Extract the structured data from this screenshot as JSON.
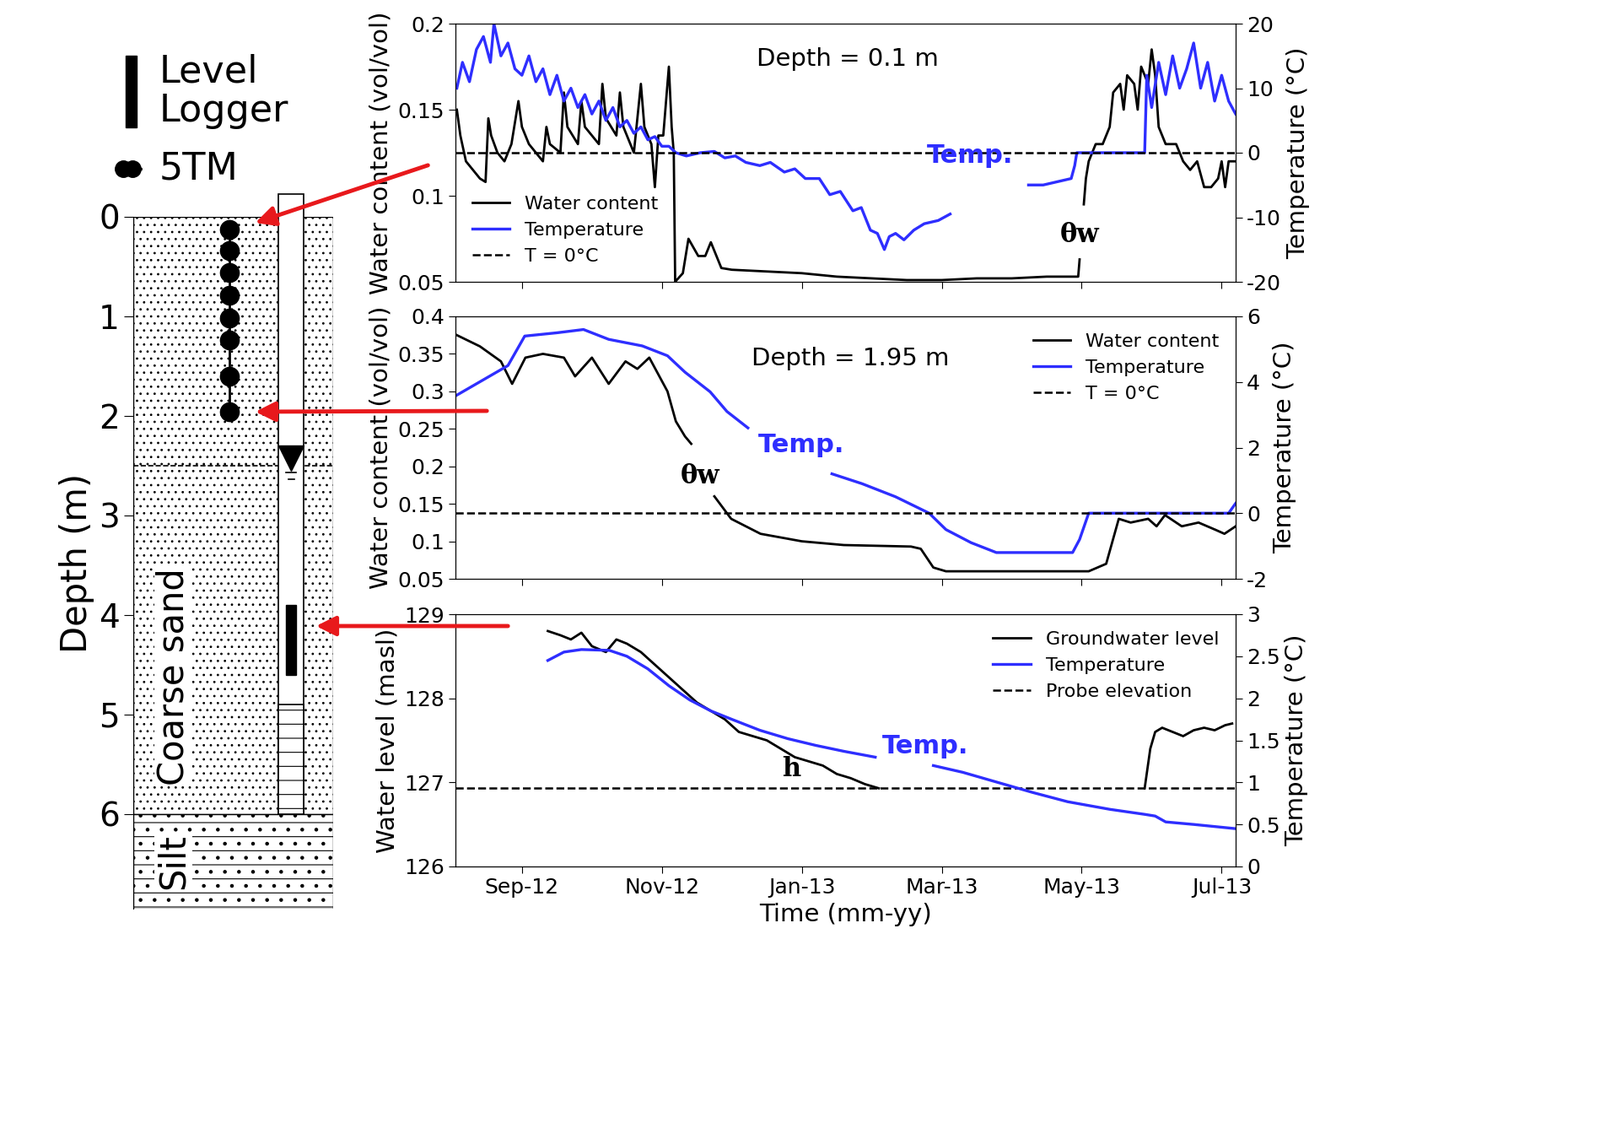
{
  "schematic": {
    "type": "diagram",
    "ylabel": "Depth (m)",
    "ylim": [
      6.95,
      0
    ],
    "yticks": [
      0,
      1,
      2,
      3,
      4,
      5,
      6
    ],
    "layers": [
      {
        "label": "Coarse sand",
        "top": 0,
        "bottom": 6
      },
      {
        "label": "Silt",
        "top": 6,
        "bottom": 6.95
      }
    ],
    "water_table_depth": 2.5,
    "sensors": {
      "label": "5TM",
      "depths": [
        0.13,
        0.34,
        0.56,
        0.79,
        1.02,
        1.24,
        1.6,
        1.96
      ]
    },
    "logger": {
      "label": "Level Logger",
      "top": 3.9,
      "bottom": 4.6
    },
    "screen": {
      "top": 4.9,
      "bottom": 6.0
    }
  },
  "chart_data": [
    {
      "type": "line",
      "title": "Depth = 0.1 m",
      "ylabel": "Water content (vol/vol)",
      "y2label": "Temperature (°C)",
      "xlim": [
        8.05,
        19.2
      ],
      "xticks": [
        {
          "value": 9,
          "label": "Sep-12"
        },
        {
          "value": 11,
          "label": "Nov-12"
        },
        {
          "value": 13,
          "label": "Jan-13"
        },
        {
          "value": 15,
          "label": "Mar-13"
        },
        {
          "value": 17,
          "label": "May-13"
        },
        {
          "value": 19,
          "label": "Jul-13"
        }
      ],
      "ylim": [
        0.05,
        0.2
      ],
      "yticks": [
        0.05,
        0.1,
        0.15,
        0.2
      ],
      "y2lim": [
        -20,
        20
      ],
      "y2ticks": [
        -20,
        -10,
        0,
        10,
        20
      ],
      "tick_labels": "y",
      "legend": "lower left",
      "annotations": [
        {
          "text": "Temp.",
          "color": "#2e2eff"
        },
        {
          "text": "θw",
          "color": "#000000"
        }
      ],
      "series": [
        {
          "name": "Water content",
          "color": "#000000",
          "line_style": "solid",
          "x": [
            8.07,
            8.12,
            8.2,
            8.3,
            8.4,
            8.48,
            8.52,
            8.56,
            8.65,
            8.75,
            8.85,
            8.95,
            9.0,
            9.1,
            9.2,
            9.3,
            9.35,
            9.4,
            9.55,
            9.6,
            9.65,
            9.8,
            9.85,
            9.9,
            10.0,
            10.1,
            10.15,
            10.2,
            10.35,
            10.4,
            10.45,
            10.6,
            10.7,
            10.75,
            10.85,
            10.9,
            10.95,
            11.02,
            11.1,
            11.14,
            11.17,
            11.19,
            11.3,
            11.38,
            11.45,
            11.52,
            11.62,
            11.7,
            11.78,
            11.85,
            12.0,
            12.5,
            13.0,
            13.5,
            14.0,
            14.5,
            15.0,
            15.5,
            16.0,
            16.5,
            16.95,
            16.97,
            16.98,
            17.03,
            17.06,
            17.1,
            17.2,
            17.3,
            17.4,
            17.45,
            17.55,
            17.6,
            17.65,
            17.75,
            17.8,
            17.85,
            17.95,
            18.0,
            18.05,
            18.1,
            18.2,
            18.35,
            18.45,
            18.55,
            18.65,
            18.75,
            18.85,
            18.95,
            19.0,
            19.05,
            19.1,
            19.2
          ],
          "values": [
            0.15,
            0.135,
            0.12,
            0.115,
            0.11,
            0.108,
            0.145,
            0.135,
            0.125,
            0.12,
            0.13,
            0.155,
            0.14,
            0.13,
            0.125,
            0.12,
            0.14,
            0.13,
            0.125,
            0.16,
            0.14,
            0.13,
            0.155,
            0.14,
            0.135,
            0.13,
            0.165,
            0.145,
            0.135,
            0.16,
            0.14,
            0.125,
            0.165,
            0.14,
            0.13,
            0.105,
            0.135,
            0.135,
            0.175,
            0.14,
            0.125,
            0.05,
            0.055,
            0.075,
            0.07,
            0.065,
            0.065,
            0.073,
            0.065,
            0.058,
            0.057,
            0.056,
            0.055,
            0.053,
            0.052,
            0.051,
            0.051,
            0.052,
            0.052,
            0.053,
            0.053,
            0.063,
            null,
            0.095,
            0.11,
            0.12,
            0.13,
            0.13,
            0.14,
            0.16,
            0.165,
            0.15,
            0.17,
            0.165,
            0.15,
            0.175,
            0.165,
            0.185,
            0.17,
            0.14,
            0.13,
            0.13,
            0.12,
            0.115,
            0.12,
            0.105,
            0.105,
            0.11,
            0.12,
            0.105,
            0.12,
            0.12
          ]
        },
        {
          "name": "Temperature",
          "color": "#2e2eff",
          "axis": "y2",
          "line_style": "solid",
          "x": [
            8.07,
            8.15,
            8.25,
            8.35,
            8.45,
            8.55,
            8.6,
            8.7,
            8.8,
            8.9,
            9.0,
            9.1,
            9.2,
            9.3,
            9.4,
            9.5,
            9.6,
            9.7,
            9.8,
            9.9,
            10.0,
            10.1,
            10.2,
            10.3,
            10.4,
            10.5,
            10.6,
            10.7,
            10.8,
            10.9,
            11.0,
            11.1,
            11.2,
            11.35,
            11.55,
            11.75,
            11.9,
            12.05,
            12.2,
            12.4,
            12.55,
            12.75,
            12.9,
            13.05,
            13.25,
            13.4,
            13.55,
            13.73,
            13.85,
            13.98,
            14.08,
            14.18,
            14.25,
            14.34,
            14.46,
            14.6,
            14.75,
            14.95,
            15.12,
            15.15,
            16.24,
            16.45,
            16.65,
            16.85,
            16.9,
            16.93,
            17.5,
            17.9,
            17.93,
            18.0,
            18.1,
            18.2,
            18.3,
            18.4,
            18.5,
            18.6,
            18.7,
            18.8,
            18.9,
            19.0,
            19.1,
            19.2
          ],
          "values": [
            10,
            14,
            11,
            16,
            18,
            14,
            20,
            15,
            17,
            13,
            12,
            15,
            11,
            13,
            9,
            12,
            8,
            10,
            7,
            9,
            6,
            8,
            5,
            7,
            4,
            5,
            3,
            4,
            2,
            2.5,
            1,
            1,
            0,
            -0.5,
            0,
            0.2,
            -0.8,
            -0.5,
            -1.5,
            -2,
            -1.5,
            -3,
            -2.5,
            -4,
            -4,
            -6.5,
            -6,
            -9,
            -8.5,
            -12,
            -12.5,
            -15,
            -13,
            -12.5,
            -13.5,
            -12,
            -11,
            -10.5,
            -9.5,
            null,
            -5,
            -5,
            -4.5,
            -4,
            -2,
            0,
            0,
            0,
            12,
            7,
            14,
            9,
            15,
            10,
            13,
            17,
            10,
            14,
            8,
            12,
            8,
            6
          ]
        },
        {
          "name": "T = 0°C",
          "color": "#000000",
          "axis": "y2",
          "type": "hline",
          "line_style": "dashed",
          "values": [
            0
          ]
        }
      ]
    },
    {
      "type": "line",
      "title": "Depth = 1.95 m",
      "ylabel": "Water content (vol/vol)",
      "y2label": "Temperature (°C)",
      "xlim": [
        8.05,
        19.2
      ],
      "xticks": [
        {
          "value": 9,
          "label": "Sep-12"
        },
        {
          "value": 11,
          "label": "Nov-12"
        },
        {
          "value": 13,
          "label": "Jan-13"
        },
        {
          "value": 15,
          "label": "Mar-13"
        },
        {
          "value": 17,
          "label": "May-13"
        },
        {
          "value": 19,
          "label": "Jul-13"
        }
      ],
      "ylim": [
        0.05,
        0.4
      ],
      "yticks": [
        0.05,
        0.1,
        0.15,
        0.2,
        0.25,
        0.3,
        0.35,
        0.4
      ],
      "y2lim": [
        -2,
        6
      ],
      "y2ticks": [
        -2,
        0,
        2,
        4,
        6
      ],
      "tick_labels": "y",
      "legend": "upper right",
      "annotations": [
        {
          "text": "Temp.",
          "color": "#2e2eff"
        },
        {
          "text": "θw",
          "color": "#000000"
        }
      ],
      "series": [
        {
          "name": "Water content",
          "color": "#000000",
          "line_style": "solid",
          "x": [
            8.07,
            8.4,
            8.7,
            8.86,
            9.05,
            9.3,
            9.6,
            9.76,
            10.0,
            10.24,
            10.48,
            10.65,
            10.82,
            11.08,
            11.2,
            11.33,
            11.42,
            11.5,
            11.75,
            11.99,
            12.41,
            13.0,
            13.6,
            14.56,
            14.7,
            14.88,
            15.06,
            16.0,
            17.1,
            17.35,
            17.53,
            17.7,
            17.95,
            18.07,
            18.19,
            18.43,
            18.67,
            18.92,
            19.04,
            19.2
          ],
          "values": [
            0.375,
            0.36,
            0.34,
            0.31,
            0.345,
            0.35,
            0.345,
            0.32,
            0.345,
            0.31,
            0.34,
            0.33,
            0.345,
            0.3,
            0.26,
            0.24,
            0.23,
            null,
            0.16,
            0.13,
            0.11,
            0.1,
            0.095,
            0.093,
            0.09,
            0.065,
            0.06,
            0.06,
            0.06,
            0.07,
            0.13,
            0.125,
            0.13,
            0.12,
            0.135,
            0.12,
            0.125,
            0.115,
            0.11,
            0.12
          ]
        },
        {
          "name": "Temperature",
          "color": "#2e2eff",
          "axis": "y2",
          "line_style": "solid",
          "x": [
            8.07,
            8.8,
            9.04,
            9.5,
            9.88,
            10.24,
            10.72,
            11.08,
            11.33,
            11.69,
            11.93,
            12.23,
            12.3,
            13.43,
            13.86,
            14.34,
            14.82,
            15.06,
            15.42,
            15.78,
            16.87,
            16.97,
            17.1,
            19.1,
            19.2
          ],
          "values": [
            3.6,
            4.5,
            5.4,
            5.5,
            5.6,
            5.3,
            5.1,
            4.8,
            4.3,
            3.7,
            3.1,
            2.6,
            null,
            1.2,
            0.9,
            0.5,
            0,
            -0.5,
            -0.9,
            -1.2,
            -1.2,
            -0.8,
            0,
            0,
            0.3
          ]
        },
        {
          "name": "T = 0°C",
          "color": "#000000",
          "axis": "y2",
          "type": "hline",
          "line_style": "dashed",
          "values": [
            0
          ]
        }
      ]
    },
    {
      "type": "line",
      "xlabel": "Time (mm-yy)",
      "ylabel": "Water level (masl)",
      "y2label": "Temperature (°C)",
      "xlim": [
        8.05,
        19.2
      ],
      "xticks": [
        {
          "value": 9,
          "label": "Sep-12"
        },
        {
          "value": 11,
          "label": "Nov-12"
        },
        {
          "value": 13,
          "label": "Jan-13"
        },
        {
          "value": 15,
          "label": "Mar-13"
        },
        {
          "value": 17,
          "label": "May-13"
        },
        {
          "value": 19,
          "label": "Jul-13"
        }
      ],
      "ylim": [
        126,
        129
      ],
      "yticks": [
        126,
        127,
        128,
        129
      ],
      "y2lim": [
        0,
        3
      ],
      "y2ticks": [
        0,
        0.5,
        1,
        1.5,
        2,
        2.5,
        3
      ],
      "legend": "upper right",
      "annotations": [
        {
          "text": "Temp.",
          "color": "#2e2eff"
        },
        {
          "text": "h",
          "color": "#000000"
        }
      ],
      "series": [
        {
          "name": "Groundwater level",
          "color": "#000000",
          "line_style": "solid",
          "x": [
            9.37,
            9.55,
            9.7,
            9.85,
            10.0,
            10.2,
            10.35,
            10.5,
            10.7,
            10.9,
            11.1,
            11.3,
            11.5,
            11.7,
            11.9,
            12.1,
            12.3,
            12.5,
            12.7,
            12.9,
            13.1,
            13.3,
            13.5,
            13.7,
            13.9,
            14.1,
            14.2,
            17.9,
            17.98,
            18.05,
            18.15,
            18.3,
            18.45,
            18.6,
            18.75,
            18.9,
            19.05,
            19.15
          ],
          "values": [
            128.8,
            128.75,
            128.7,
            128.78,
            128.62,
            128.55,
            128.7,
            128.65,
            128.55,
            128.4,
            128.25,
            128.1,
            127.95,
            127.85,
            127.75,
            127.6,
            127.55,
            127.5,
            127.4,
            127.3,
            127.25,
            127.2,
            127.1,
            127.05,
            126.98,
            126.93,
            null,
            126.93,
            127.4,
            127.6,
            127.65,
            127.6,
            127.55,
            127.62,
            127.65,
            127.62,
            127.68,
            127.7
          ]
        },
        {
          "name": "Temperature",
          "color": "#2e2eff",
          "axis": "y2",
          "line_style": "solid",
          "x": [
            9.37,
            9.6,
            9.85,
            10.25,
            10.5,
            10.8,
            11.1,
            11.4,
            11.7,
            12.0,
            12.4,
            12.8,
            13.2,
            13.6,
            14.05,
            14.08,
            14.88,
            15.3,
            15.8,
            16.3,
            16.8,
            17.4,
            17.9,
            18.05,
            18.2,
            18.6,
            19.2
          ],
          "values": [
            2.45,
            2.55,
            2.58,
            2.57,
            2.5,
            2.35,
            2.15,
            1.98,
            1.85,
            1.75,
            1.62,
            1.52,
            1.44,
            1.37,
            1.3,
            null,
            1.2,
            1.12,
            1.0,
            0.88,
            0.77,
            0.68,
            0.62,
            0.6,
            0.53,
            0.5,
            0.45
          ]
        },
        {
          "name": "Probe elevation",
          "color": "#000000",
          "type": "hline",
          "line_style": "dashed",
          "values": [
            126.93
          ]
        }
      ]
    }
  ]
}
